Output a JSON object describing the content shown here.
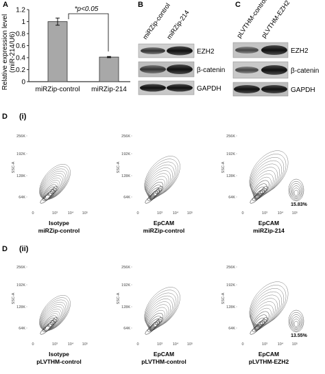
{
  "panel_a": {
    "letter": "A",
    "chart_data": {
      "type": "bar",
      "categories": [
        "miRZip-control",
        "miRZip-214"
      ],
      "values": [
        1.0,
        0.41
      ],
      "errors": [
        0.06,
        0.01
      ],
      "ylabel_line1": "Relative expression level",
      "ylabel_line2": "(miR-214/U6)",
      "ylim": [
        0,
        1.2
      ],
      "yticks": [
        "0",
        "0.2",
        "0.4",
        "0.6",
        "0.8",
        "1",
        "1.2"
      ],
      "yticks_values": [
        0,
        0.2,
        0.4,
        0.6,
        0.8,
        1.0,
        1.2
      ],
      "significance": "*p<0.05",
      "bar_color": "#a8a8a8"
    }
  },
  "panel_b": {
    "letter": "B",
    "lanes": [
      "miRZip-control",
      "miRZip-214"
    ],
    "bands": [
      "EZH2",
      "β-catenin",
      "GAPDH"
    ]
  },
  "panel_c": {
    "letter": "C",
    "lanes": [
      "pLVTHM-control",
      "pLVTHM-EZH2"
    ],
    "bands": [
      "EZH2",
      "β-catenin",
      "GAPDH"
    ]
  },
  "panel_d": {
    "letter_i": "D",
    "roman_i": "(i)",
    "letter_ii": "D",
    "roman_ii": "(ii)",
    "yaxis_label": "SSC-A",
    "yticks": [
      "256K",
      "192K",
      "128K",
      "64K"
    ],
    "xticks": [
      "0",
      "10³",
      "10⁴",
      "10⁵"
    ],
    "row_i": [
      {
        "label1": "Isotype",
        "label2": "miRZip-control",
        "gate": ""
      },
      {
        "label1": "EpCAM",
        "label2": "miRZip-control",
        "gate": ""
      },
      {
        "label1": "EpCAM",
        "label2": "miRZip-214",
        "gate": "15.83%"
      }
    ],
    "row_ii": [
      {
        "label1": "Isotype",
        "label2": "pLVTHM-control",
        "gate": ""
      },
      {
        "label1": "EpCAM",
        "label2": "pLVTHM-control",
        "gate": ""
      },
      {
        "label1": "EpCAM",
        "label2": "pLVTHM-EZH2",
        "gate": "13.55%"
      }
    ]
  }
}
